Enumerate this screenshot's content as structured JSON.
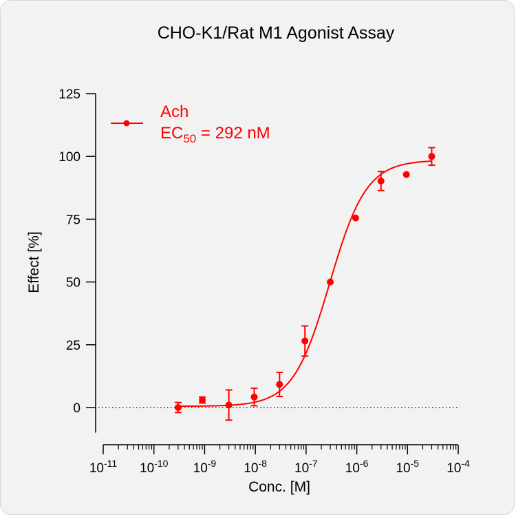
{
  "chart_data": {
    "type": "scatter",
    "title": "CHO-K1/Rat M1 Agonist Assay",
    "xlabel": "Conc. [M]",
    "ylabel": "Effect  [%]",
    "x_scale": "log",
    "xlim": [
      1e-11,
      0.0001
    ],
    "ylim": [
      -10,
      125
    ],
    "x_ticks": [
      {
        "base": "10",
        "exp": "-11"
      },
      {
        "base": "10",
        "exp": "-10"
      },
      {
        "base": "10",
        "exp": "-9"
      },
      {
        "base": "10",
        "exp": "-8"
      },
      {
        "base": "10",
        "exp": "-7"
      },
      {
        "base": "10",
        "exp": "-6"
      },
      {
        "base": "10",
        "exp": "-5"
      },
      {
        "base": "10",
        "exp": "-4"
      }
    ],
    "y_ticks": [
      "0",
      "25",
      "50",
      "75",
      "100",
      "125"
    ],
    "reference_line": {
      "y": 0,
      "style": "dotted"
    },
    "series": [
      {
        "name": "Ach",
        "color": "#ff0000",
        "points": [
          {
            "x": 3e-10,
            "y": 0,
            "err": 2
          },
          {
            "x": 9e-10,
            "y": 3,
            "err": 1.2
          },
          {
            "x": 3e-09,
            "y": 1,
            "err": 6
          },
          {
            "x": 9.5e-09,
            "y": 4.2,
            "err": 3.5
          },
          {
            "x": 3e-08,
            "y": 9.2,
            "err": 4.8
          },
          {
            "x": 9.5e-08,
            "y": 26.5,
            "err": 6
          },
          {
            "x": 3e-07,
            "y": 50,
            "err": 0
          },
          {
            "x": 9.5e-07,
            "y": 75.5,
            "err": 0
          },
          {
            "x": 3e-06,
            "y": 90.2,
            "err": 3.8
          },
          {
            "x": 9.5e-06,
            "y": 92.8,
            "err": 0
          },
          {
            "x": 3e-05,
            "y": 100,
            "err": 3.5
          }
        ],
        "fit": {
          "bottom": 0.5,
          "top": 98.5,
          "ec50": 2.92e-07,
          "hill": 1.2
        }
      }
    ],
    "legend": {
      "position": "top-left",
      "label": "Ach",
      "ec50_prefix": "EC",
      "ec50_sub": "50",
      "ec50_value": " = 292 nM"
    }
  }
}
